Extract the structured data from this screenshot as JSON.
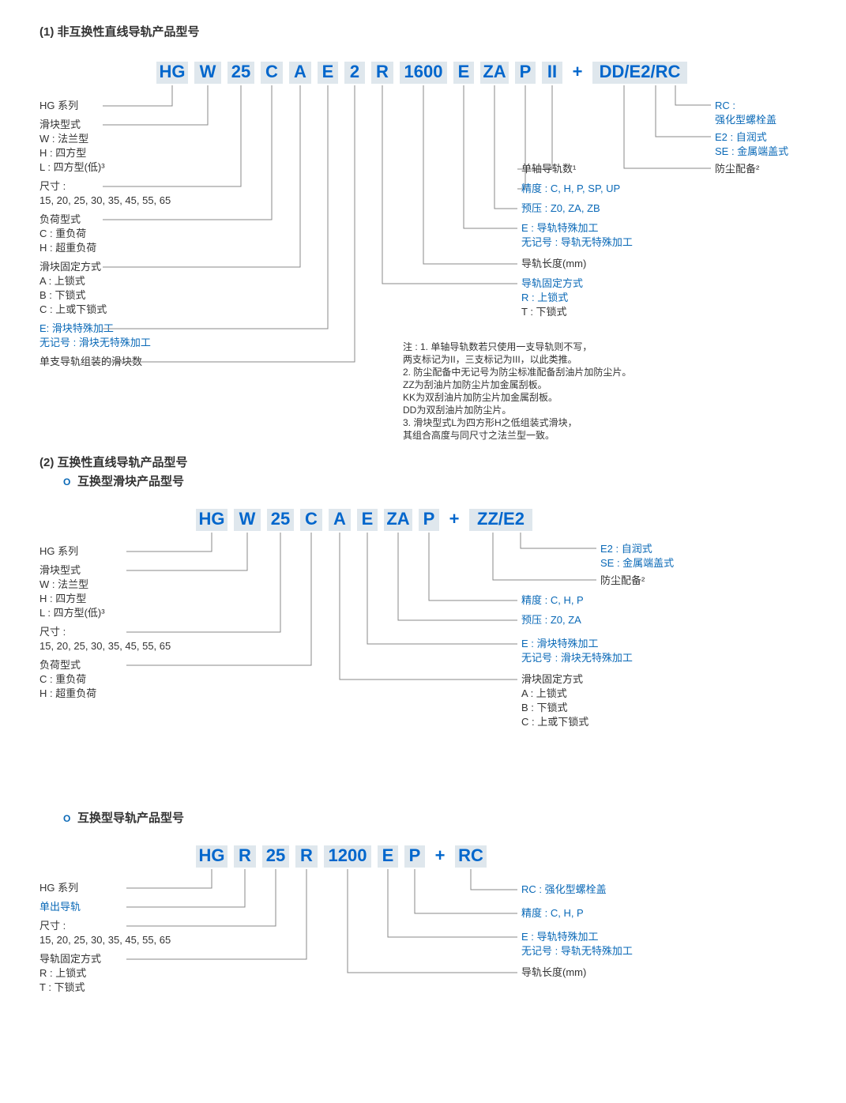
{
  "colors": {
    "code": "#0066cc",
    "blue": "#0a69b7",
    "box": "#dfe7ed",
    "line": "#888",
    "text": "#333",
    "bg": "#ffffff"
  },
  "fonts": {
    "code_size": 22,
    "label_size": 13,
    "header_size": 15,
    "note_size": 12
  },
  "sec1": {
    "title": "(1) 非互换性直线导轨产品型号",
    "tokens": [
      "HG",
      "W",
      "25",
      "C",
      "A",
      "E",
      "2",
      "R",
      "1600",
      "E",
      "ZA",
      "P",
      "II",
      "+",
      "DD/E2/RC"
    ],
    "left": [
      {
        "t": "HG 系列",
        "lines": []
      },
      {
        "t": "滑块型式",
        "lines": [
          "W : 法兰型",
          "H : 四方型",
          "L : 四方型(低)³"
        ]
      },
      {
        "t": "尺寸 :",
        "lines": [
          "15, 20, 25, 30, 35, 45, 55, 65"
        ]
      },
      {
        "t": "负荷型式",
        "lines": [
          "C : 重负荷",
          "H : 超重负荷"
        ]
      },
      {
        "t": "滑块固定方式",
        "lines": [
          "A : 上锁式",
          "B : 下锁式",
          "C : 上或下锁式"
        ]
      },
      {
        "t": "E: 滑块特殊加工",
        "blue": true,
        "lines": [
          "无记号 : 滑块无特殊加工"
        ]
      },
      {
        "t": "单支导轨组装的滑块数",
        "lines": []
      }
    ],
    "right": [
      {
        "t": "RC :",
        "blue": true,
        "lines": [
          "强化型螺栓盖"
        ]
      },
      {
        "t": "E2 : 自润式",
        "blue": true,
        "lines": [
          "SE : 金属端盖式"
        ]
      },
      {
        "t": "防尘配备²",
        "lines": []
      },
      {
        "t": "单轴导轨数¹",
        "lines": []
      },
      {
        "t": "精度 : C, H, P, SP, UP",
        "blue": true,
        "lines": []
      },
      {
        "t": "预压 : Z0, ZA, ZB",
        "blue": true,
        "lines": []
      },
      {
        "t": "E : 导轨特殊加工",
        "blue": true,
        "lines": [
          "无记号 : 导轨无特殊加工"
        ]
      },
      {
        "t": "导轨长度(mm)",
        "lines": []
      },
      {
        "t": "导轨固定方式",
        "blue": true,
        "lines": [
          "R : 上锁式",
          "T : 下锁式"
        ]
      }
    ],
    "notes": [
      "注 : 1. 单轴导轨数若只使用一支导轨则不写，",
      "        两支标记为II，三支标记为III，以此类推。",
      "     2. 防尘配备中无记号为防尘标准配备刮油片加防尘片。",
      "        ZZ为刮油片加防尘片加金属刮板。",
      "        KK为双刮油片加防尘片加金属刮板。",
      "        DD为双刮油片加防尘片。",
      "     3. 滑块型式L为四方形H之低组装式滑块，",
      "        其组合高度与同尺寸之法兰型一致。"
    ]
  },
  "sec2": {
    "title": "(2) 互换性直线导轨产品型号",
    "sub": "互换型滑块产品型号",
    "tokens": [
      "HG",
      "W",
      "25",
      "C",
      "A",
      "E",
      "ZA",
      "P",
      "+",
      "ZZ/E2"
    ],
    "left": [
      {
        "t": "HG 系列",
        "lines": []
      },
      {
        "t": "滑块型式",
        "lines": [
          "W : 法兰型",
          "H : 四方型",
          "L : 四方型(低)³"
        ]
      },
      {
        "t": "尺寸 :",
        "lines": [
          "15, 20, 25, 30, 35, 45, 55, 65"
        ]
      },
      {
        "t": "负荷型式",
        "lines": [
          "C : 重负荷",
          "H : 超重负荷"
        ]
      }
    ],
    "right": [
      {
        "t": "E2 : 自润式",
        "blue": true,
        "lines": [
          "SE : 金属端盖式"
        ]
      },
      {
        "t": "防尘配备²",
        "lines": []
      },
      {
        "t": "精度 : C, H, P",
        "blue": true,
        "lines": []
      },
      {
        "t": "预压 : Z0, ZA",
        "blue": true,
        "lines": []
      },
      {
        "t": "E : 滑块特殊加工",
        "blue": true,
        "lines": [
          "无记号 : 滑块无特殊加工"
        ]
      },
      {
        "t": "滑块固定方式",
        "lines": [
          "A : 上锁式",
          "B : 下锁式",
          "C : 上或下锁式"
        ]
      }
    ]
  },
  "sec3": {
    "sub": "互换型导轨产品型号",
    "tokens": [
      "HG",
      "R",
      "25",
      "R",
      "1200",
      "E",
      "P",
      "+",
      "RC"
    ],
    "left": [
      {
        "t": "HG 系列",
        "lines": []
      },
      {
        "t": "单出导轨",
        "blue": true,
        "lines": []
      },
      {
        "t": "尺寸 :",
        "lines": [
          "15, 20, 25, 30, 35, 45, 55, 65"
        ]
      },
      {
        "t": "导轨固定方式",
        "lines": [
          "R : 上锁式",
          "T : 下锁式"
        ]
      }
    ],
    "right": [
      {
        "t": "RC : 强化型螺栓盖",
        "blue": true,
        "lines": []
      },
      {
        "t": "精度 : C, H, P",
        "blue": true,
        "lines": []
      },
      {
        "t": "E : 导轨特殊加工",
        "blue": true,
        "lines": [
          "无记号 : 导轨无特殊加工"
        ]
      },
      {
        "t": "导轨长度(mm)",
        "lines": []
      }
    ]
  }
}
